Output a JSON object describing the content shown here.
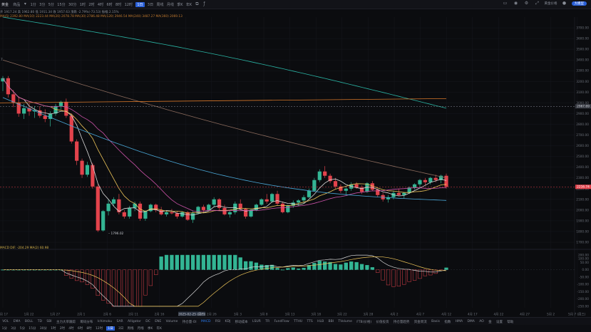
{
  "toolbar": {
    "symbol": "黄金",
    "market": "商品",
    "timeframes": [
      "1分",
      "3分",
      "5分",
      "15分",
      "30分",
      "1时",
      "2时",
      "4时",
      "6时",
      "8时",
      "12时",
      "1日",
      "3日",
      "周线",
      "月线",
      "季K",
      "年K"
    ],
    "active_timeframe": "1日",
    "badge": "大模型",
    "user": "黄金价格"
  },
  "info_lines": {
    "ohlc": "开 1917.24  高 1962.80  低 1911.34  收 1957.63  涨跌 -2.79%(-73.53)  振幅 2.15%",
    "ma": "MA(5) 2392.80   MA(10) 2223.44   MA(20) 2078.78   MA(30) 2786.48   MA(120) 2946.54   MA(240) 3487.27   MA(360) 2069.13",
    "macd": "MACD DIF: -204.29   MA(2) 60.98"
  },
  "annotations": {
    "top_left": "7",
    "low_label": "1796.02",
    "crosshair_date": "2025-02-25 (周四)"
  },
  "price_axis": {
    "labels": [
      "3700.00",
      "3600.00",
      "3500.00",
      "3400.00",
      "3300.00",
      "3200.00",
      "3100.00",
      "3000.00",
      "2900.00",
      "2800.00",
      "2700.00",
      "2600.00",
      "2500.00",
      "2400.00",
      "2300.00",
      "2200.00",
      "2100.00",
      "2000.00",
      "1900.00",
      "1800.00",
      "1700.00"
    ],
    "badge_orange": "2967.69",
    "badge_red": "2216.74"
  },
  "macd_axis": {
    "labels": [
      "200.00",
      "100.00",
      "50.00",
      "0.00",
      "-50.00",
      "-100.00",
      "-150.00",
      "-200.00",
      "-250.00"
    ]
  },
  "date_axis": {
    "labels": [
      "1月 17",
      "1月 22",
      "1月 27",
      "2月 1",
      "2月 6",
      "2月 11",
      "2月 16",
      "2025-02-25 (周四)",
      "2月 26",
      "3月 3",
      "3月 8",
      "3月 13",
      "3月 18",
      "3月 22",
      "3月 28",
      "4月 2",
      "4月 7",
      "4月 12",
      "4月 17",
      "4月 22",
      "4月 27",
      "5月 2",
      "5月 7 (周三)"
    ]
  },
  "indicator_tabs": [
    "VOL",
    "EMA",
    "BOLL",
    "TD",
    "SBI",
    "主力大单跟踪",
    "筹码分布",
    "Ichimoku",
    "SAR",
    "Alligator",
    "DC",
    "ENE",
    "Volume",
    "持仓量·OI",
    "MACD",
    "RSI",
    "KDJ",
    "移动成本",
    "LSUR",
    "TR",
    "FundFlow",
    "TTHU",
    "TTS",
    "HLB",
    "BBI",
    "TVolume",
    "FTB(价格)",
    "",
    "价值投资",
    "持仓量趋势",
    "资金周流",
    "Basis",
    "指数",
    "HMA",
    "DMA",
    "AO",
    "金",
    "",
    "设置",
    "帮助"
  ],
  "indicator_active": "MACD",
  "bottom_timeframes": [
    "1分",
    "3分",
    "5分",
    "15分",
    "30分",
    "1时",
    "2时",
    "4时",
    "6时",
    "8时",
    "12时",
    "1日",
    "3日",
    "周线",
    "月线",
    "季K",
    "年K"
  ],
  "bottom_active": "1日",
  "colors": {
    "up": "#33b594",
    "down": "#e3434c",
    "ma5": "#d9d9d9",
    "ma10": "#f0c75a",
    "ma20": "#cc52a8",
    "ma30": "#4aa8d8",
    "ma120": "#8a6a5c",
    "ma240": "#2ab3a3",
    "ma360": "#d7772a"
  },
  "chart_data": {
    "type": "candlestick",
    "dates_start": "1月 17",
    "candles_ohlc": [
      [
        3200,
        3250,
        3110,
        3230
      ],
      [
        3230,
        3250,
        3050,
        3080
      ],
      [
        3080,
        3120,
        2960,
        3000
      ],
      [
        3000,
        3060,
        2870,
        2900
      ],
      [
        2900,
        2990,
        2850,
        2950
      ],
      [
        2950,
        3000,
        2880,
        2920
      ],
      [
        2920,
        2970,
        2860,
        2930
      ],
      [
        2930,
        2970,
        2860,
        2880
      ],
      [
        2880,
        2940,
        2820,
        2850
      ],
      [
        2850,
        2920,
        2780,
        2900
      ],
      [
        2900,
        2990,
        2880,
        2970
      ],
      [
        2970,
        3020,
        2940,
        3010
      ],
      [
        3010,
        3040,
        2860,
        2880
      ],
      [
        2880,
        2900,
        2620,
        2640
      ],
      [
        2640,
        2660,
        2420,
        2460
      ],
      [
        2460,
        2480,
        2300,
        2330
      ],
      [
        2330,
        2450,
        2310,
        2420
      ],
      [
        2420,
        2440,
        2200,
        2220
      ],
      [
        2220,
        2240,
        1796,
        1810
      ],
      [
        1810,
        2000,
        1800,
        1990
      ],
      [
        1990,
        2100,
        1950,
        2060
      ],
      [
        2060,
        2120,
        2040,
        2100
      ],
      [
        2100,
        2150,
        1960,
        1980
      ],
      [
        1980,
        2000,
        1920,
        1940
      ],
      [
        1940,
        2040,
        1920,
        2020
      ],
      [
        2020,
        2080,
        1990,
        2060
      ],
      [
        2060,
        2080,
        1900,
        1920
      ],
      [
        1920,
        2000,
        1900,
        1990
      ],
      [
        1990,
        2060,
        1980,
        2050
      ],
      [
        2050,
        2060,
        1980,
        2000
      ],
      [
        2000,
        2030,
        1950,
        1960
      ],
      [
        1960,
        1990,
        1940,
        1980
      ],
      [
        1980,
        2010,
        1960,
        1970
      ],
      [
        1970,
        1990,
        1920,
        1940
      ],
      [
        1940,
        1990,
        1930,
        1980
      ],
      [
        1980,
        1990,
        1900,
        1910
      ],
      [
        1910,
        1990,
        1880,
        1970
      ],
      [
        1970,
        2040,
        1960,
        2030
      ],
      [
        2030,
        2050,
        1980,
        2000
      ],
      [
        2000,
        2060,
        1990,
        2050
      ],
      [
        2050,
        2120,
        2030,
        2100
      ],
      [
        2100,
        2110,
        2000,
        2020
      ],
      [
        2020,
        2050,
        1950,
        1960
      ],
      [
        1960,
        2000,
        1930,
        1980
      ],
      [
        1980,
        2080,
        1960,
        2060
      ],
      [
        2060,
        2100,
        2000,
        2010
      ],
      [
        2010,
        2020,
        1920,
        1940
      ],
      [
        1940,
        2010,
        1930,
        2000
      ],
      [
        2000,
        2060,
        1990,
        2050
      ],
      [
        2050,
        2110,
        2040,
        2100
      ],
      [
        2100,
        2150,
        2060,
        2080
      ],
      [
        2080,
        2160,
        2070,
        2150
      ],
      [
        2150,
        2180,
        2040,
        2060
      ],
      [
        2060,
        2080,
        1970,
        1980
      ],
      [
        1980,
        2050,
        1970,
        2040
      ],
      [
        2040,
        2090,
        2020,
        2070
      ],
      [
        2070,
        2100,
        2040,
        2090
      ],
      [
        2090,
        2140,
        2060,
        2120
      ],
      [
        2120,
        2200,
        2110,
        2180
      ],
      [
        2180,
        2300,
        2170,
        2280
      ],
      [
        2280,
        2380,
        2260,
        2360
      ],
      [
        2360,
        2410,
        2300,
        2320
      ],
      [
        2320,
        2340,
        2250,
        2270
      ],
      [
        2270,
        2300,
        2200,
        2220
      ],
      [
        2220,
        2240,
        2160,
        2180
      ],
      [
        2180,
        2220,
        2140,
        2200
      ],
      [
        2200,
        2260,
        2180,
        2240
      ],
      [
        2240,
        2260,
        2200,
        2210
      ],
      [
        2210,
        2230,
        2150,
        2170
      ],
      [
        2170,
        2260,
        2160,
        2250
      ],
      [
        2250,
        2270,
        2180,
        2190
      ],
      [
        2190,
        2200,
        2120,
        2140
      ],
      [
        2140,
        2160,
        2080,
        2100
      ],
      [
        2100,
        2140,
        2070,
        2120
      ],
      [
        2120,
        2180,
        2100,
        2160
      ],
      [
        2160,
        2200,
        2130,
        2140
      ],
      [
        2140,
        2170,
        2110,
        2160
      ],
      [
        2160,
        2220,
        2150,
        2210
      ],
      [
        2210,
        2250,
        2190,
        2240
      ],
      [
        2240,
        2290,
        2210,
        2280
      ],
      [
        2280,
        2300,
        2230,
        2260
      ],
      [
        2260,
        2310,
        2240,
        2300
      ],
      [
        2300,
        2330,
        2260,
        2280
      ],
      [
        2280,
        2330,
        2250,
        2320
      ],
      [
        2320,
        2340,
        2200,
        2216
      ]
    ],
    "y_range": [
      1700,
      3800
    ],
    "macd_range": [
      -260,
      110
    ],
    "ma_series": [
      "MA5",
      "MA10",
      "MA20",
      "MA30",
      "MA120",
      "MA240",
      "MA360"
    ]
  }
}
